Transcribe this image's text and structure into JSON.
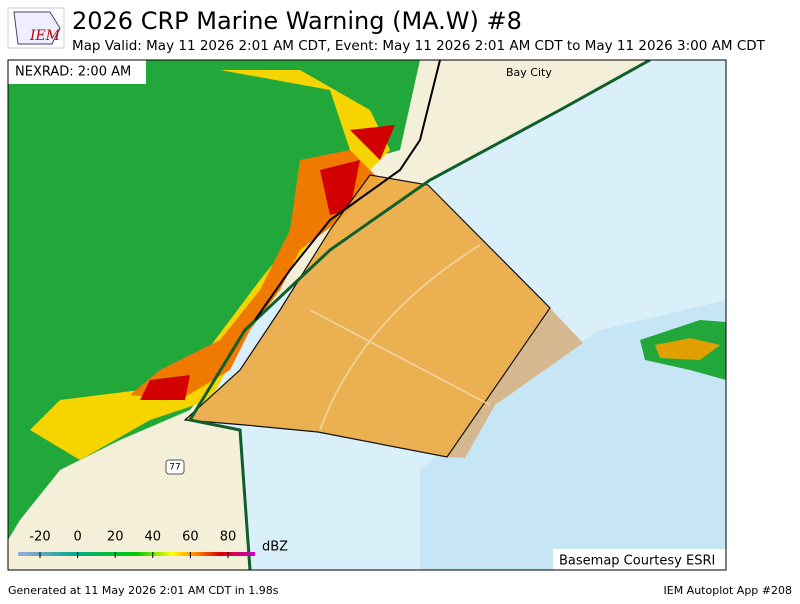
{
  "header": {
    "logo": "IEM",
    "title": "2026 CRP  Marine Warning (MA.W) #8",
    "subtitle": "Map Valid: May 11 2026 2:01 AM CDT, Event: May 11 2026 2:01 AM CDT to May 11 2026 3:00 AM CDT"
  },
  "map": {
    "radar_label": "NEXRAD: 2:00 AM",
    "places": [
      "Bay City"
    ],
    "highway": "77",
    "basemap_credit": "Basemap Courtesy ESRI"
  },
  "legend": {
    "ticks": [
      -20,
      0,
      20,
      40,
      60,
      80
    ],
    "unit": "dBZ"
  },
  "footer": {
    "left": "Generated at 11 May 2026 2:01 AM CDT in 1.98s",
    "right": "IEM Autoplot App #208"
  }
}
